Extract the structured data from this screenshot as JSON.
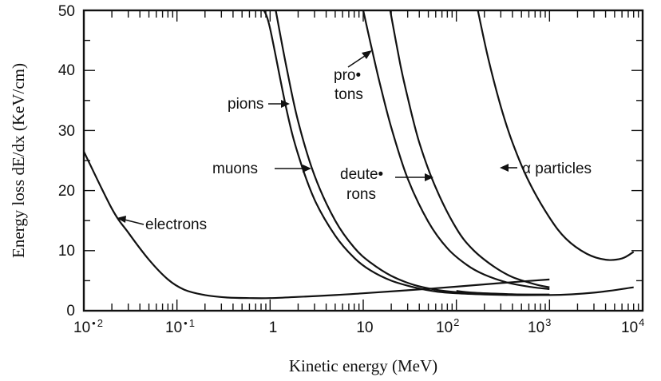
{
  "chart_data": {
    "type": "line",
    "title": "",
    "xlabel": "Kinetic energy (MeV)",
    "ylabel": "Energy loss dE/dx (KeV/cm)",
    "xscale": "log",
    "xlim": [
      0.01,
      10000
    ],
    "ylim": [
      0,
      50
    ],
    "grid": false,
    "x_ticks": [
      {
        "base": "10",
        "mark": "•",
        "exp": "2"
      },
      {
        "base": "10",
        "mark": "•",
        "exp": "1"
      },
      {
        "base": "1",
        "mark": "",
        "exp": ""
      },
      {
        "base": "10",
        "mark": "",
        "exp": ""
      },
      {
        "base": "10",
        "mark": "",
        "exp": "2"
      },
      {
        "base": "10",
        "mark": "",
        "exp": "3"
      },
      {
        "base": "10",
        "mark": "",
        "exp": "4"
      }
    ],
    "y_ticks": [
      "0",
      "10",
      "20",
      "30",
      "40",
      "50"
    ],
    "annotations": [
      {
        "lines": [
          "electrons"
        ]
      },
      {
        "lines": [
          "pions"
        ]
      },
      {
        "lines": [
          "muons"
        ]
      },
      {
        "lines": [
          "pro•",
          "tons"
        ]
      },
      {
        "lines": [
          "deute•",
          "rons"
        ]
      },
      {
        "lines": [
          "α particles"
        ]
      }
    ],
    "series": [
      {
        "label_ref": "electrons",
        "x": [
          0.01,
          0.02,
          0.03,
          0.05,
          0.08,
          0.12,
          0.2,
          0.35,
          0.6,
          1,
          2,
          5,
          10,
          30,
          100,
          300,
          1000
        ],
        "y": [
          26.5,
          17,
          13,
          8.5,
          5.2,
          3.5,
          2.6,
          2.2,
          2.1,
          2.1,
          2.3,
          2.6,
          2.9,
          3.4,
          4,
          4.6,
          5.2
        ]
      },
      {
        "label_ref": "muons",
        "x": [
          0.86,
          1,
          1.5,
          2,
          3,
          5,
          8,
          12,
          20,
          35,
          60,
          100,
          200,
          400,
          1000
        ],
        "y": [
          50,
          47,
          33.5,
          26,
          18.5,
          12.5,
          8.8,
          6.7,
          5,
          3.9,
          3.2,
          2.9,
          2.7,
          2.6,
          2.6
        ]
      },
      {
        "label_ref": "pions",
        "x": [
          1.15,
          1.5,
          2,
          3,
          5,
          8,
          12,
          20,
          35,
          60,
          100,
          200,
          500,
          1000
        ],
        "y": [
          50,
          40.5,
          31.5,
          22.5,
          15,
          10.5,
          8,
          5.8,
          4.3,
          3.5,
          3.1,
          2.8,
          2.7,
          2.7
        ]
      },
      {
        "label_ref": "protons",
        "x": [
          10,
          12,
          15,
          20,
          30,
          50,
          80,
          130,
          200,
          350,
          600,
          1000
        ],
        "y": [
          50,
          44.5,
          38,
          30.5,
          22,
          14.8,
          10.4,
          7.6,
          6,
          4.7,
          4,
          3.6
        ]
      },
      {
        "label_ref": "deuterons",
        "x": [
          19.5,
          25,
          30,
          40,
          60,
          100,
          150,
          250,
          400,
          700,
          1000
        ],
        "y": [
          50,
          41,
          35.5,
          28,
          20.5,
          13.7,
          10.2,
          7.4,
          5.6,
          4.4,
          3.9
        ]
      },
      {
        "label_ref": "alpha",
        "x": [
          170,
          220,
          300,
          400,
          600,
          1000,
          1500,
          2500,
          4000,
          6000,
          8000
        ],
        "y": [
          50,
          42,
          34,
          28,
          21.5,
          15.5,
          12,
          9.5,
          8.5,
          8.7,
          9.8
        ]
      },
      {
        "label_ref": "low-energy tail",
        "x": [
          100,
          150,
          300,
          1000,
          3000,
          8000
        ],
        "y": [
          3.3,
          3.0,
          2.8,
          2.6,
          3.0,
          3.9
        ]
      }
    ]
  }
}
